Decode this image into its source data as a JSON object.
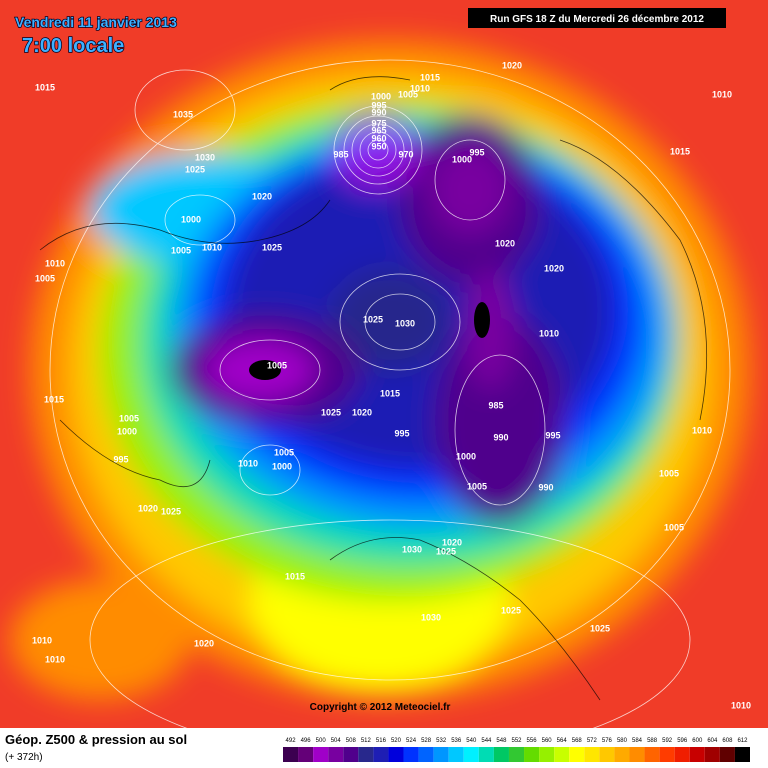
{
  "header": {
    "date": "Vendredi 11 janvier 2013",
    "time": "7:00 locale",
    "run": "Run GFS 18 Z du Mercredi 26 décembre 2012"
  },
  "map": {
    "copyright": "Copyright © 2012 Meteociel.fr",
    "isobar_labels": [
      1015,
      1035,
      1030,
      1025,
      1020,
      1000,
      1005,
      1010,
      1025,
      1010,
      1005,
      1015,
      1020,
      1010,
      1010,
      1005,
      1000,
      995,
      990,
      975,
      965,
      960,
      950,
      985,
      970,
      1000,
      995,
      1015,
      1020,
      1020,
      1025,
      1030,
      1010,
      1005,
      1015,
      1005,
      1000,
      995,
      1025,
      1020,
      1015,
      995,
      985,
      990,
      995,
      1000,
      1005,
      1000,
      1010,
      1010,
      1005,
      990,
      1005,
      1005,
      1020,
      1025,
      1030,
      1020,
      1025,
      1015,
      1025,
      1030,
      1025,
      1010,
      1010,
      1020,
      1010
    ]
  },
  "footer": {
    "title": "Géop. Z500 & pression au sol",
    "lead": "(+ 372h)"
  },
  "scale": {
    "labels": [
      492,
      496,
      500,
      504,
      508,
      512,
      516,
      520,
      524,
      528,
      532,
      536,
      540,
      544,
      548,
      552,
      556,
      560,
      564,
      568,
      572,
      576,
      580,
      584,
      588,
      592,
      596,
      600,
      604,
      608,
      612
    ],
    "colors": [
      "#3c0050",
      "#640078",
      "#a000c8",
      "#7800a0",
      "#50008c",
      "#28288c",
      "#1e1eb4",
      "#0000dc",
      "#0032ff",
      "#0064ff",
      "#0096ff",
      "#00c8ff",
      "#00f0ff",
      "#00dcb4",
      "#00c864",
      "#32c832",
      "#64dc00",
      "#96f000",
      "#c8ff00",
      "#ffff00",
      "#ffe600",
      "#ffc800",
      "#ffaa00",
      "#ff8c00",
      "#ff6400",
      "#ff3c00",
      "#f01e00",
      "#c80000",
      "#a00000",
      "#600000",
      "#000000"
    ]
  }
}
